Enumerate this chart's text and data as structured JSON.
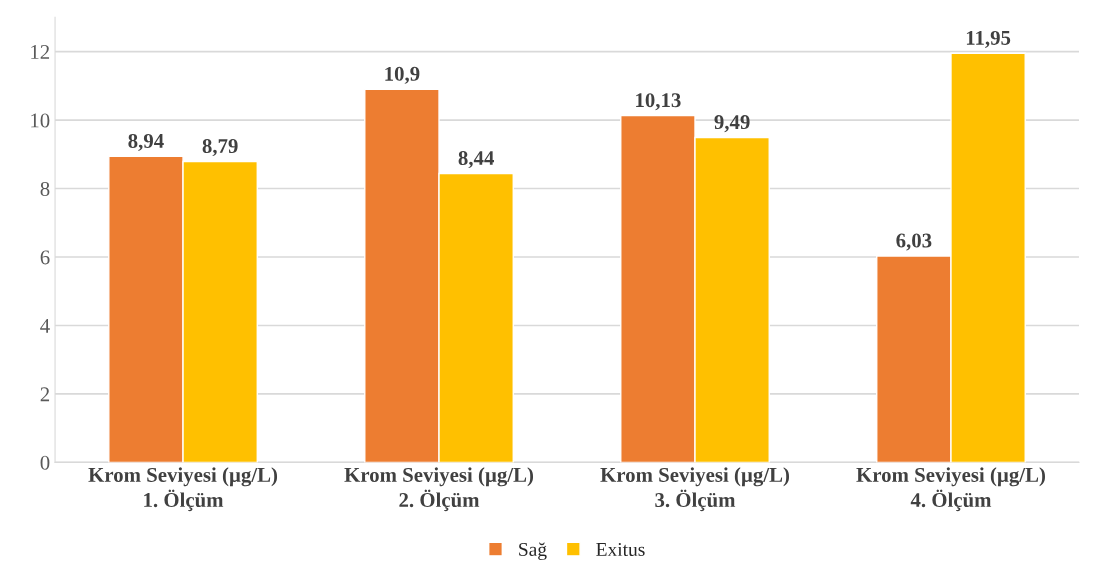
{
  "chart_data": {
    "type": "bar",
    "categories": [
      "Krom Seviyesi (µg/L)\n1. Ölçüm",
      "Krom Seviyesi (µg/L)\n2. Ölçüm",
      "Krom Seviyesi (µg/L)\n3. Ölçüm",
      "Krom Seviyesi (µg/L)\n4. Ölçüm"
    ],
    "series": [
      {
        "name": "Sağ",
        "color": "#ed7d31",
        "values": [
          8.94,
          10.9,
          10.13,
          6.03
        ],
        "value_labels": [
          "8,94",
          "10,9",
          "10,13",
          "6,03"
        ]
      },
      {
        "name": "Exitus",
        "color": "#ffc000",
        "values": [
          8.79,
          8.44,
          9.49,
          11.95
        ],
        "value_labels": [
          "8,79",
          "8,44",
          "9,49",
          "11,95"
        ]
      }
    ],
    "ylim": [
      0,
      13
    ],
    "yticks": [
      0,
      2,
      4,
      6,
      8,
      10,
      12
    ],
    "grid": "y",
    "legend": "bottom"
  }
}
